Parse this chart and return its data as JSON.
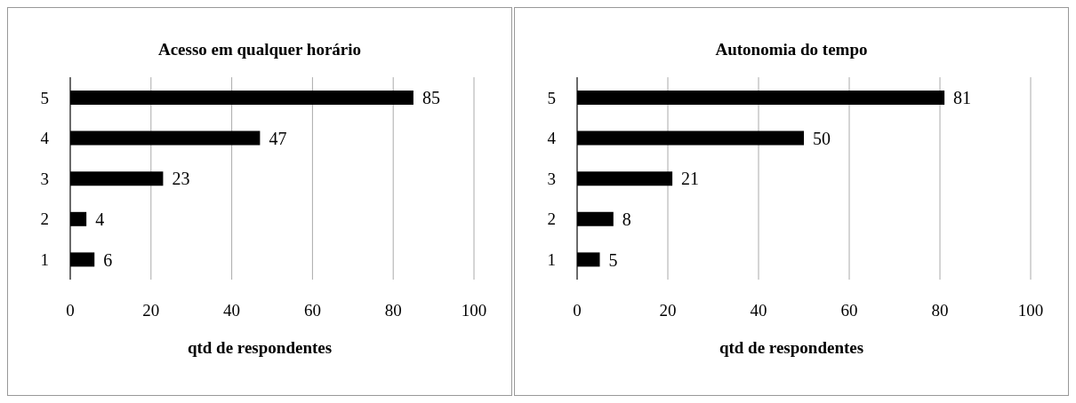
{
  "chart_data": [
    {
      "type": "bar",
      "orientation": "horizontal",
      "title": "Acesso em qualquer horário",
      "xlabel": "qtd de respondentes",
      "categories": [
        "5",
        "4",
        "3",
        "2",
        "1"
      ],
      "values": [
        85,
        47,
        23,
        4,
        6
      ],
      "color": "#000000",
      "xlim": [
        0,
        100
      ],
      "xticks": [
        0,
        20,
        40,
        60,
        80,
        100
      ],
      "grid": "x",
      "data_labels": true,
      "legend": false
    },
    {
      "type": "bar",
      "orientation": "horizontal",
      "title": "Autonomia do tempo",
      "xlabel": "qtd de respondentes",
      "categories": [
        "5",
        "4",
        "3",
        "2",
        "1"
      ],
      "values": [
        81,
        50,
        21,
        8,
        5
      ],
      "color": "#000000",
      "xlim": [
        0,
        100
      ],
      "xticks": [
        0,
        20,
        40,
        60,
        80,
        100
      ],
      "grid": "x",
      "data_labels": true,
      "legend": false
    }
  ]
}
